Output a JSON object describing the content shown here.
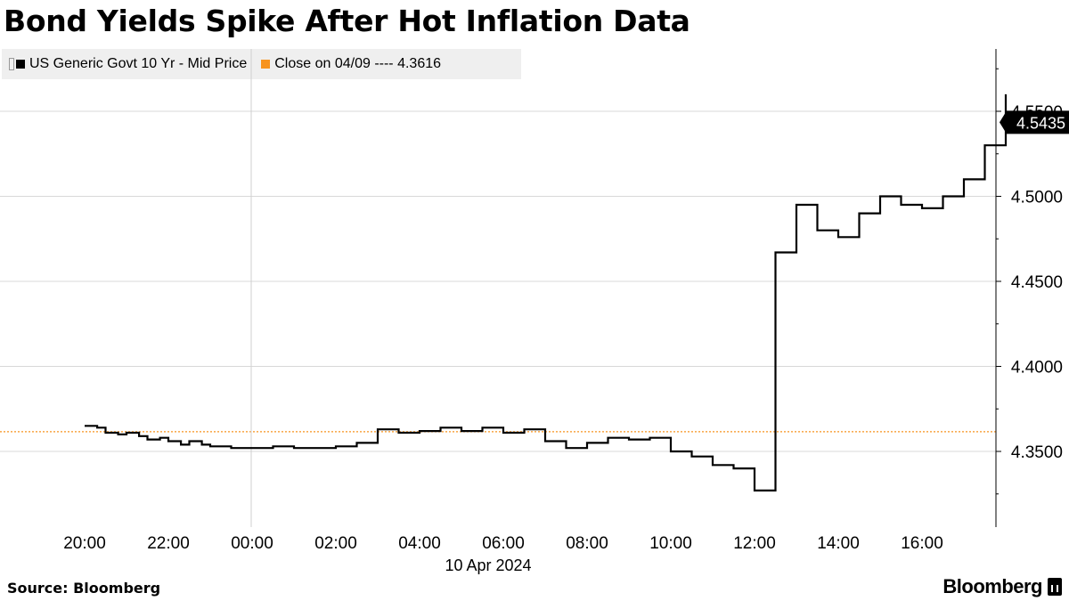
{
  "title": "Bond Yields Spike After Hot Inflation Data",
  "legend": {
    "series_label": "US Generic Govt 10 Yr - Mid Price",
    "reference_label": "Close on 04/09 ---- 4.3616"
  },
  "footer": {
    "source": "Source: Bloomberg",
    "brand": "Bloomberg"
  },
  "colors": {
    "series": "#000000",
    "reference": "#f7931e",
    "gridline": "#d8d8d8",
    "legend_bg": "#efefef"
  },
  "chart_data": {
    "type": "line",
    "title": "Bond Yields Spike After Hot Inflation Data",
    "xlabel": "10 Apr 2024",
    "ylabel": "",
    "x_ticks": [
      "20:00",
      "22:00",
      "00:00",
      "02:00",
      "04:00",
      "06:00",
      "08:00",
      "10:00",
      "12:00",
      "14:00",
      "16:00"
    ],
    "y_ticks": [
      "4.3500",
      "4.4000",
      "4.4500",
      "4.5000",
      "4.5500"
    ],
    "ylim": [
      4.31,
      4.59
    ],
    "x_range_hours": [
      -1.0,
      22.3
    ],
    "last_value_label": "4.5435",
    "reference_line": {
      "label": "Close on 04/09",
      "value": 4.3616
    },
    "grid": "horizontal",
    "series": [
      {
        "name": "US Generic Govt 10 Yr - Mid Price",
        "x_hours": [
          0.0,
          0.3,
          0.5,
          0.8,
          1.0,
          1.3,
          1.5,
          1.8,
          2.0,
          2.3,
          2.5,
          2.8,
          3.0,
          3.5,
          4.0,
          4.5,
          5.0,
          5.5,
          6.0,
          6.5,
          7.0,
          7.5,
          8.0,
          8.5,
          9.0,
          9.5,
          10.0,
          10.5,
          11.0,
          11.5,
          12.0,
          12.5,
          13.0,
          13.5,
          14.0,
          14.5,
          15.0,
          15.5,
          16.0,
          16.5,
          17.0,
          17.5,
          18.0,
          18.5,
          19.0,
          19.5,
          20.0,
          20.5,
          21.0,
          21.5,
          22.0
        ],
        "y": [
          4.365,
          4.364,
          4.361,
          4.36,
          4.361,
          4.359,
          4.357,
          4.358,
          4.356,
          4.354,
          4.356,
          4.354,
          4.353,
          4.352,
          4.352,
          4.353,
          4.352,
          4.352,
          4.353,
          4.355,
          4.363,
          4.361,
          4.362,
          4.364,
          4.362,
          4.364,
          4.361,
          4.363,
          4.356,
          4.352,
          4.355,
          4.358,
          4.357,
          4.358,
          4.35,
          4.347,
          4.342,
          4.34,
          4.327,
          4.467,
          4.495,
          4.48,
          4.476,
          4.49,
          4.5,
          4.495,
          4.493,
          4.5,
          4.51,
          4.53,
          4.56
        ]
      }
    ]
  }
}
